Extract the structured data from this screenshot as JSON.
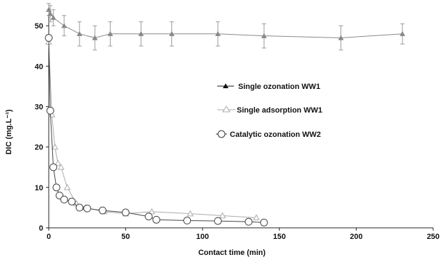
{
  "chart_data": {
    "type": "line",
    "xlabel": "Contact time (min)",
    "ylabel": "DIC (mg.L⁻¹)",
    "xlim": [
      0,
      250
    ],
    "ylim": [
      0,
      55
    ],
    "x_ticks": [
      0,
      50,
      100,
      150,
      200,
      250
    ],
    "y_ticks": [
      0,
      10,
      20,
      30,
      40,
      50
    ],
    "grid": false,
    "legend_position": "center-right",
    "series": [
      {
        "name": "Single ozonation WW1",
        "marker": "triangle-filled",
        "color": "#888888",
        "x": [
          0,
          1,
          3,
          10,
          20,
          30,
          40,
          60,
          80,
          110,
          140,
          190,
          230
        ],
        "y": [
          54,
          53,
          52,
          50,
          48,
          47,
          48,
          48,
          48,
          48,
          47.5,
          47,
          48
        ],
        "error": [
          1.5,
          2,
          2,
          2.5,
          3,
          3,
          3,
          3,
          3,
          3,
          3,
          3,
          2.5
        ]
      },
      {
        "name": "Single adsorption WW1",
        "marker": "triangle-open",
        "color": "#aaaaaa",
        "x": [
          0,
          2,
          4,
          6,
          8,
          12,
          18,
          24,
          36,
          50,
          67,
          92,
          113,
          135
        ],
        "y": [
          46,
          28,
          20,
          16,
          15,
          10,
          6,
          5,
          4,
          3.5,
          4,
          3.5,
          3,
          2.5
        ]
      },
      {
        "name": "Catalytic ozonation WW2",
        "marker": "circle-open",
        "color": "#444444",
        "x": [
          0,
          1,
          3,
          5,
          7,
          10,
          15,
          20,
          25,
          35,
          50,
          65,
          70,
          90,
          110,
          130,
          140
        ],
        "y": [
          47,
          29,
          15,
          10,
          8,
          7,
          6.5,
          5,
          4.8,
          4.3,
          3.8,
          2.8,
          2,
          1.8,
          1.7,
          1.5,
          1.3
        ]
      }
    ]
  }
}
